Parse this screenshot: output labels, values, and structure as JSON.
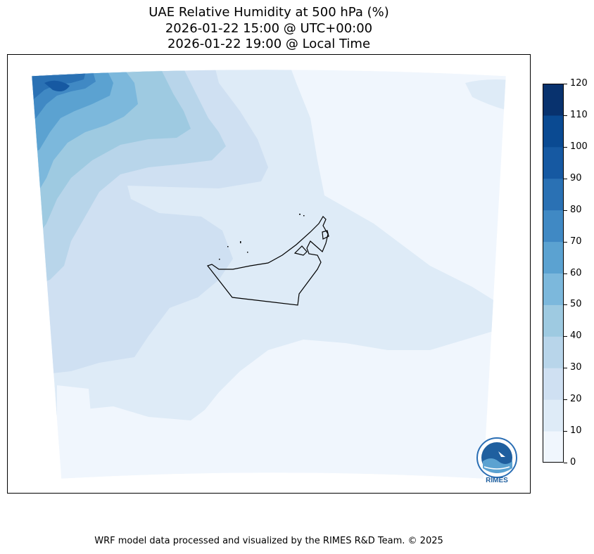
{
  "title": {
    "line1": "UAE Relative Humidity at 500 hPa (%)",
    "line2": "2026-01-22 15:00 @ UTC+00:00",
    "line3": "2026-01-22 19:00 @ Local Time"
  },
  "colorbar": {
    "ticks": [
      "0",
      "10",
      "20",
      "30",
      "40",
      "50",
      "60",
      "70",
      "80",
      "90",
      "100",
      "110",
      "120"
    ],
    "colors": [
      "#f0f6fd",
      "#deebf7",
      "#cfe0f2",
      "#b8d5ea",
      "#9ecae1",
      "#7cb8dc",
      "#5ba2d1",
      "#4089c4",
      "#2a71b4",
      "#1659a2",
      "#0a4a92",
      "#08326e"
    ]
  },
  "logo": {
    "text": "RIMES"
  },
  "credit": "WRF model data processed and visualized by the RIMES R&D Team. © 2025"
}
